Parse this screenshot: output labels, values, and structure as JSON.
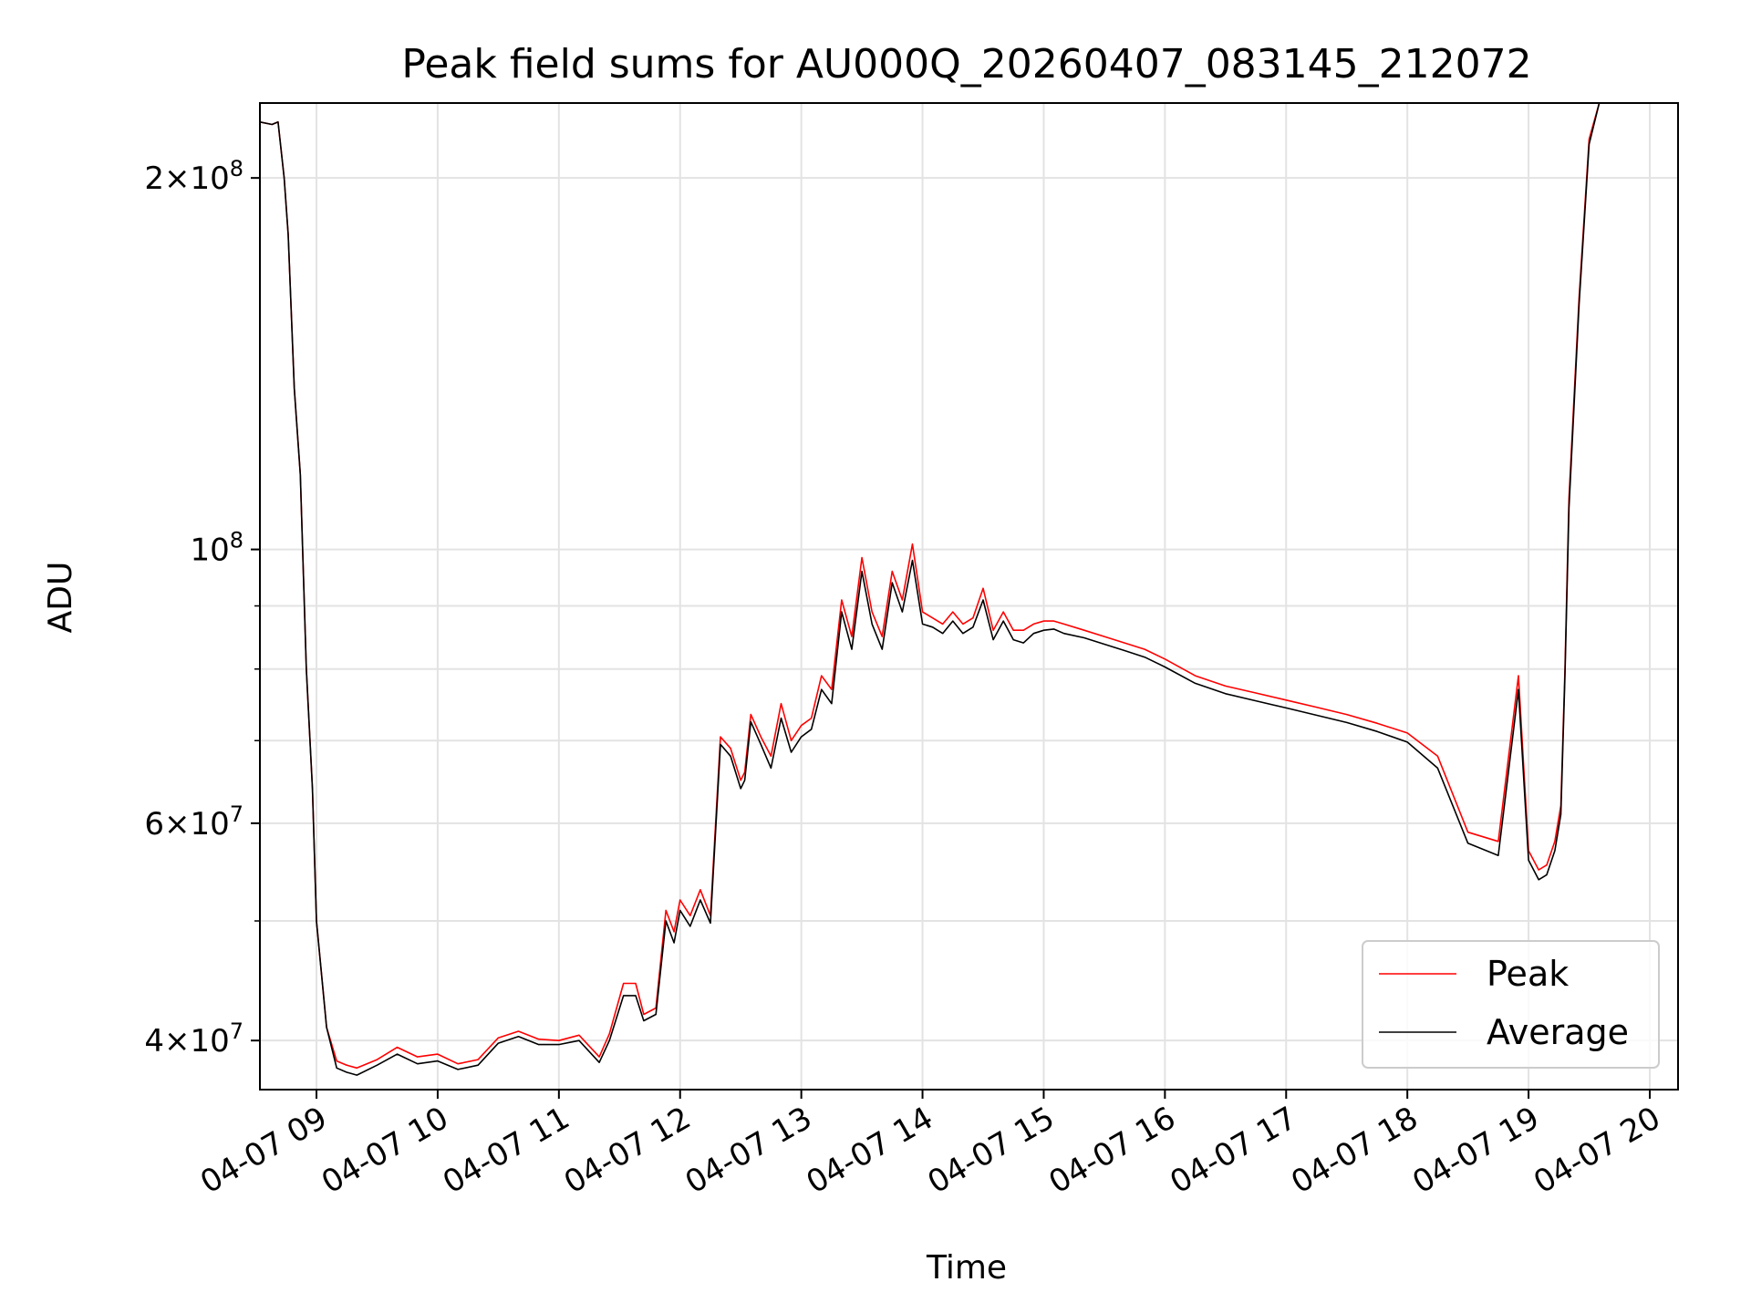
{
  "chart_data": {
    "type": "line",
    "title": "Peak field sums for AU000Q_20260407_083145_212072",
    "xlabel": "Time",
    "ylabel": "ADU",
    "yscale": "log",
    "ylim": [
      36500000,
      230000000
    ],
    "xlim": [
      "2026-04-07 08:32",
      "2026-04-07 20:14"
    ],
    "x_tick_labels": [
      "04-07 09",
      "04-07 10",
      "04-07 11",
      "04-07 12",
      "04-07 13",
      "04-07 14",
      "04-07 15",
      "04-07 16",
      "04-07 17",
      "04-07 18",
      "04-07 19",
      "04-07 20"
    ],
    "y_tick_labels": [
      {
        "value": 200000000,
        "mantissa": "2",
        "base": "10",
        "exp": "8"
      },
      {
        "value": 100000000,
        "mantissa": "",
        "base": "10",
        "exp": "8"
      },
      {
        "value": 60000000,
        "mantissa": "6",
        "base": "10",
        "exp": "7"
      },
      {
        "value": 40000000,
        "mantissa": "4",
        "base": "10",
        "exp": "7"
      }
    ],
    "y_minor_ticks": [
      50000000,
      70000000,
      80000000,
      90000000
    ],
    "grid": true,
    "legend_position": "lower right",
    "series": [
      {
        "name": "Peak",
        "color": "#ff0000",
        "x": [
          "08:32",
          "08:38",
          "08:41",
          "08:44",
          "08:46",
          "08:49",
          "08:52",
          "08:55",
          "08:58",
          "09:00",
          "09:05",
          "09:10",
          "09:15",
          "09:20",
          "09:30",
          "09:40",
          "09:50",
          "10:00",
          "10:10",
          "10:20",
          "10:30",
          "10:40",
          "10:50",
          "11:00",
          "11:10",
          "11:20",
          "11:25",
          "11:32",
          "11:38",
          "11:42",
          "11:48",
          "11:53",
          "11:57",
          "12:00",
          "12:05",
          "12:10",
          "12:15",
          "12:20",
          "12:25",
          "12:30",
          "12:32",
          "12:35",
          "12:40",
          "12:45",
          "12:50",
          "12:55",
          "13:00",
          "13:05",
          "13:10",
          "13:15",
          "13:20",
          "13:25",
          "13:30",
          "13:35",
          "13:40",
          "13:45",
          "13:50",
          "13:55",
          "14:00",
          "14:05",
          "14:10",
          "14:15",
          "14:20",
          "14:25",
          "14:30",
          "14:35",
          "14:40",
          "14:45",
          "14:50",
          "14:55",
          "15:00",
          "15:05",
          "15:10",
          "15:20",
          "15:30",
          "15:40",
          "15:50",
          "16:00",
          "16:15",
          "16:30",
          "16:45",
          "17:00",
          "17:15",
          "17:30",
          "17:45",
          "18:00",
          "18:15",
          "18:30",
          "18:45",
          "18:55",
          "19:00",
          "19:05",
          "19:09",
          "19:13",
          "19:16",
          "19:18",
          "19:20",
          "19:25",
          "19:30",
          "19:35",
          "19:40",
          "19:45",
          "19:50",
          "19:55",
          "20:00",
          "20:04",
          "20:07",
          "20:10",
          "20:14"
        ],
        "values": [
          222000000,
          221000000,
          222000000,
          200000000,
          180000000,
          135000000,
          115000000,
          80000000,
          64000000,
          50000000,
          41000000,
          38500000,
          38200000,
          38000000,
          38600000,
          39500000,
          38800000,
          39000000,
          38300000,
          38600000,
          40200000,
          40700000,
          40100000,
          40000000,
          40400000,
          38800000,
          40500000,
          44500000,
          44500000,
          42000000,
          42500000,
          51000000,
          49000000,
          52000000,
          50500000,
          53000000,
          50500000,
          70500000,
          69000000,
          65000000,
          66000000,
          73500000,
          70500000,
          68000000,
          75000000,
          70000000,
          72000000,
          73000000,
          79000000,
          77000000,
          91000000,
          85000000,
          98500000,
          89000000,
          85000000,
          96000000,
          91000000,
          101000000,
          89000000,
          88000000,
          87000000,
          89000000,
          87000000,
          88000000,
          93000000,
          86000000,
          89000000,
          86000000,
          86000000,
          87000000,
          87500000,
          87500000,
          87000000,
          86000000,
          85000000,
          84000000,
          83000000,
          81500000,
          79000000,
          77500000,
          76500000,
          75500000,
          74500000,
          73500000,
          72300000,
          71000000,
          68000000,
          59000000,
          58000000,
          79000000,
          57000000,
          55000000,
          55500000,
          58000000,
          62000000,
          80000000,
          110000000,
          160000000,
          215000000,
          230000000,
          230000000,
          230000000,
          230000000,
          230000000,
          230000000,
          230000000,
          230000000,
          230000000,
          230000000
        ]
      },
      {
        "name": "Average",
        "color": "#000000",
        "x": [
          "08:32",
          "08:38",
          "08:41",
          "08:44",
          "08:46",
          "08:49",
          "08:52",
          "08:55",
          "08:58",
          "09:00",
          "09:05",
          "09:10",
          "09:15",
          "09:20",
          "09:30",
          "09:40",
          "09:50",
          "10:00",
          "10:10",
          "10:20",
          "10:30",
          "10:40",
          "10:50",
          "11:00",
          "11:10",
          "11:20",
          "11:25",
          "11:32",
          "11:38",
          "11:42",
          "11:48",
          "11:53",
          "11:57",
          "12:00",
          "12:05",
          "12:10",
          "12:15",
          "12:20",
          "12:25",
          "12:30",
          "12:32",
          "12:35",
          "12:40",
          "12:45",
          "12:50",
          "12:55",
          "13:00",
          "13:05",
          "13:10",
          "13:15",
          "13:20",
          "13:25",
          "13:30",
          "13:35",
          "13:40",
          "13:45",
          "13:50",
          "13:55",
          "14:00",
          "14:05",
          "14:10",
          "14:15",
          "14:20",
          "14:25",
          "14:30",
          "14:35",
          "14:40",
          "14:45",
          "14:50",
          "14:55",
          "15:00",
          "15:05",
          "15:10",
          "15:20",
          "15:30",
          "15:40",
          "15:50",
          "16:00",
          "16:15",
          "16:30",
          "16:45",
          "17:00",
          "17:15",
          "17:30",
          "17:45",
          "18:00",
          "18:15",
          "18:30",
          "18:45",
          "18:55",
          "19:00",
          "19:05",
          "19:09",
          "19:13",
          "19:16",
          "19:18",
          "19:20",
          "19:25",
          "19:30",
          "19:35",
          "19:40",
          "19:45",
          "19:50",
          "19:55",
          "20:00",
          "20:04",
          "20:07",
          "20:10",
          "20:14"
        ],
        "values": [
          222000000,
          221000000,
          222000000,
          200000000,
          180000000,
          135000000,
          115000000,
          80000000,
          64000000,
          50000000,
          41000000,
          38000000,
          37700000,
          37500000,
          38200000,
          39000000,
          38300000,
          38500000,
          37900000,
          38200000,
          39800000,
          40300000,
          39700000,
          39700000,
          40000000,
          38400000,
          40000000,
          43500000,
          43500000,
          41500000,
          42000000,
          50000000,
          48000000,
          51000000,
          49500000,
          52000000,
          49800000,
          69500000,
          68000000,
          64000000,
          65000000,
          72500000,
          69500000,
          66500000,
          73000000,
          68500000,
          70500000,
          71500000,
          77000000,
          75000000,
          89000000,
          83000000,
          96000000,
          87000000,
          83000000,
          94000000,
          89000000,
          98000000,
          87000000,
          86500000,
          85500000,
          87500000,
          85500000,
          86500000,
          91000000,
          84500000,
          87500000,
          84500000,
          84000000,
          85500000,
          86000000,
          86200000,
          85500000,
          84800000,
          83800000,
          82800000,
          81800000,
          80300000,
          77900000,
          76400000,
          75400000,
          74400000,
          73400000,
          72400000,
          71200000,
          69800000,
          66500000,
          57800000,
          56500000,
          77000000,
          56000000,
          54000000,
          54500000,
          57000000,
          61000000,
          79000000,
          108000000,
          158000000,
          213000000,
          230000000,
          230000000,
          230000000,
          230000000,
          230000000,
          230000000,
          230000000,
          230000000,
          230000000,
          230000000
        ]
      }
    ]
  }
}
